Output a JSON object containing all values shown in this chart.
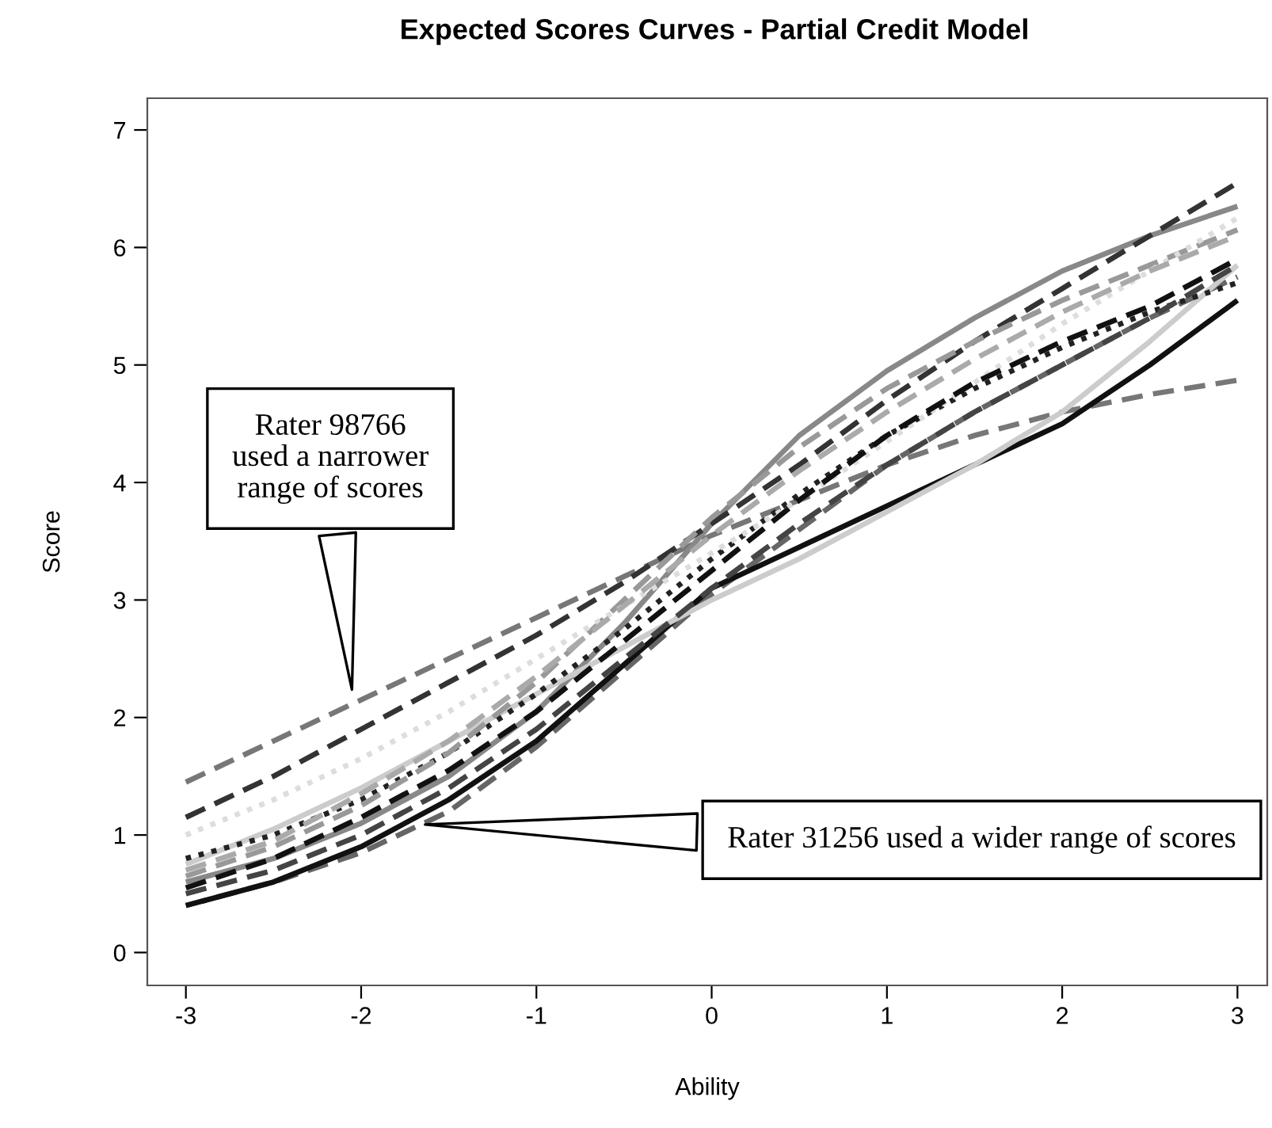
{
  "chart_data": {
    "type": "line",
    "title": "Expected Scores Curves - Partial Credit Model",
    "xlabel": "Ability",
    "ylabel": "Score",
    "x": [
      -3,
      -2.5,
      -2,
      -1.5,
      -1,
      -0.5,
      0,
      0.5,
      1,
      1.5,
      2,
      2.5,
      3
    ],
    "xlim": [
      -3.22,
      3.17
    ],
    "ylim": [
      -0.28,
      7.27
    ],
    "xticks": [
      -3,
      -2,
      -1,
      0,
      1,
      2,
      3
    ],
    "yticks": [
      0,
      1,
      2,
      3,
      4,
      5,
      6,
      7
    ],
    "grid": false,
    "series": [
      {
        "color": "#777777",
        "line_style": "dashed",
        "values": [
          1.45,
          1.8,
          2.15,
          2.5,
          2.85,
          3.2,
          3.55,
          3.85,
          4.15,
          4.4,
          4.6,
          4.75,
          4.87
        ]
      },
      {
        "color": "#888888",
        "line_style": "solid",
        "values": [
          0.6,
          0.8,
          1.1,
          1.5,
          2.05,
          2.8,
          3.65,
          4.4,
          4.95,
          5.4,
          5.8,
          6.1,
          6.35
        ]
      },
      {
        "color": "#333333",
        "line_style": "dashed",
        "values": [
          1.15,
          1.5,
          1.9,
          2.3,
          2.7,
          3.15,
          3.65,
          4.15,
          4.7,
          5.2,
          5.65,
          6.1,
          6.55
        ]
      },
      {
        "color": "#666666",
        "line_style": "dashed",
        "values": [
          0.4,
          0.6,
          0.85,
          1.2,
          1.75,
          2.4,
          3.05,
          3.6,
          4.15,
          4.6,
          5.0,
          5.4,
          5.75
        ]
      },
      {
        "color": "#111111",
        "line_style": "solid",
        "values": [
          0.4,
          0.6,
          0.9,
          1.3,
          1.8,
          2.45,
          3.1,
          3.45,
          3.8,
          4.15,
          4.5,
          5.0,
          5.55
        ]
      },
      {
        "color": "#cccccc",
        "line_style": "solid",
        "values": [
          0.75,
          1.05,
          1.4,
          1.8,
          2.2,
          2.6,
          3.0,
          3.35,
          3.75,
          4.15,
          4.6,
          5.2,
          5.85
        ]
      },
      {
        "color": "#222222",
        "line_style": "dotted",
        "values": [
          0.8,
          1.0,
          1.3,
          1.7,
          2.2,
          2.75,
          3.35,
          3.9,
          4.4,
          4.8,
          5.15,
          5.45,
          5.7
        ]
      },
      {
        "color": "#999999",
        "line_style": "dashed",
        "values": [
          0.65,
          0.9,
          1.25,
          1.7,
          2.3,
          3.0,
          3.7,
          4.3,
          4.8,
          5.2,
          5.55,
          5.85,
          6.15
        ]
      },
      {
        "color": "#444444",
        "line_style": "dashed",
        "values": [
          0.5,
          0.7,
          1.0,
          1.4,
          1.9,
          2.5,
          3.1,
          3.65,
          4.15,
          4.6,
          5.0,
          5.4,
          5.85
        ]
      },
      {
        "color": "#dddddd",
        "line_style": "dotted",
        "values": [
          1.0,
          1.3,
          1.65,
          2.05,
          2.5,
          2.95,
          3.4,
          3.85,
          4.35,
          4.85,
          5.35,
          5.8,
          6.25
        ]
      },
      {
        "color": "#111111",
        "line_style": "dashed",
        "values": [
          0.55,
          0.8,
          1.15,
          1.55,
          2.05,
          2.65,
          3.25,
          3.85,
          4.4,
          4.85,
          5.2,
          5.5,
          5.9
        ]
      },
      {
        "color": "#aaaaaa",
        "line_style": "dashed",
        "values": [
          0.7,
          0.95,
          1.35,
          1.8,
          2.35,
          2.95,
          3.55,
          4.1,
          4.6,
          5.05,
          5.45,
          5.8,
          6.1
        ]
      }
    ],
    "annotations": [
      {
        "text": "Rater 98766\nused a narrower\nrange of scores",
        "x": -2.05,
        "y": 2.2
      },
      {
        "text": "Rater 31256 used a wider range of scores",
        "x": -1.66,
        "y": 1.09
      }
    ]
  }
}
